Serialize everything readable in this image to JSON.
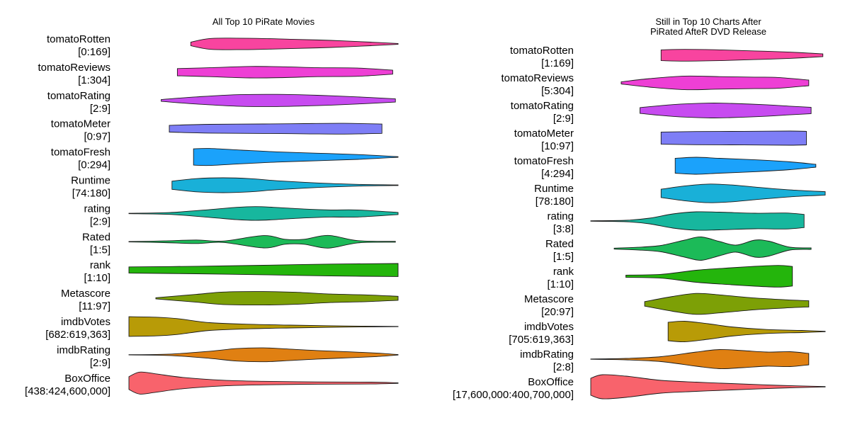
{
  "chart_data": [
    {
      "type": "violin",
      "title": [
        "All Top 10 PiRate Movies"
      ],
      "rows": [
        {
          "name": "tomatoRotten",
          "range": "[0:169]",
          "color": "#F8449F",
          "profile": [
            [
              0.23,
              2.6
            ],
            [
              0.3,
              7.6
            ],
            [
              0.4,
              8.1
            ],
            [
              0.5,
              7.6
            ],
            [
              0.6,
              6.6
            ],
            [
              0.75,
              5.0
            ],
            [
              0.9,
              2.5
            ],
            [
              1.0,
              0.6
            ]
          ]
        },
        {
          "name": "tomatoReviews",
          "range": "[1:304]",
          "color": "#EE3FD5",
          "profile": [
            [
              0.18,
              5.1
            ],
            [
              0.3,
              6.3
            ],
            [
              0.45,
              8.1
            ],
            [
              0.58,
              7.6
            ],
            [
              0.7,
              6.3
            ],
            [
              0.85,
              5.8
            ],
            [
              0.98,
              2.8
            ]
          ]
        },
        {
          "name": "tomatoRating",
          "range": "[2:9]",
          "color": "#C74BF0",
          "profile": [
            [
              0.12,
              1.3
            ],
            [
              0.25,
              5.0
            ],
            [
              0.4,
              8.1
            ],
            [
              0.55,
              8.6
            ],
            [
              0.7,
              7.3
            ],
            [
              0.85,
              5.0
            ],
            [
              0.99,
              2.3
            ]
          ]
        },
        {
          "name": "tomatoMeter",
          "range": "[0:97]",
          "color": "#7E7EF6",
          "profile": [
            [
              0.15,
              4.8
            ],
            [
              0.3,
              6.2
            ],
            [
              0.5,
              6.7
            ],
            [
              0.65,
              7.2
            ],
            [
              0.8,
              7.6
            ],
            [
              0.94,
              6.6
            ]
          ]
        },
        {
          "name": "tomatoFresh",
          "range": "[0:294]",
          "color": "#1BA2FB",
          "profile": [
            [
              0.24,
              11.5
            ],
            [
              0.3,
              12.0
            ],
            [
              0.42,
              9.6
            ],
            [
              0.55,
              7.2
            ],
            [
              0.7,
              5.3
            ],
            [
              0.85,
              3.4
            ],
            [
              1.0,
              0.4
            ]
          ]
        },
        {
          "name": "Runtime",
          "range": "[74:180]",
          "color": "#19B0D8",
          "profile": [
            [
              0.16,
              5.8
            ],
            [
              0.25,
              9.3
            ],
            [
              0.35,
              10.5
            ],
            [
              0.45,
              9.3
            ],
            [
              0.55,
              6.3
            ],
            [
              0.7,
              3.2
            ],
            [
              0.85,
              1.2
            ],
            [
              1.0,
              0.4
            ]
          ]
        },
        {
          "name": "rating",
          "range": "[2:9]",
          "color": "#17B79E",
          "profile": [
            [
              0.0,
              0.3
            ],
            [
              0.15,
              1.3
            ],
            [
              0.3,
              5.5
            ],
            [
              0.4,
              8.7
            ],
            [
              0.47,
              9.7
            ],
            [
              0.55,
              8.5
            ],
            [
              0.65,
              6.3
            ],
            [
              0.75,
              5.0
            ],
            [
              0.85,
              5.0
            ],
            [
              1.0,
              1.5
            ]
          ]
        },
        {
          "name": "Rated",
          "range": "[1:5]",
          "color": "#1CBA58",
          "profile": [
            [
              0.0,
              0.3
            ],
            [
              0.13,
              1.2
            ],
            [
              0.25,
              2.5
            ],
            [
              0.35,
              1.0
            ],
            [
              0.5,
              8.7
            ],
            [
              0.58,
              3.5
            ],
            [
              0.65,
              3.5
            ],
            [
              0.74,
              9.0
            ],
            [
              0.85,
              1.6
            ],
            [
              0.99,
              0.6
            ]
          ]
        },
        {
          "name": "rank",
          "range": "[1:10]",
          "color": "#24B50C",
          "profile": [
            [
              0.0,
              4.4
            ],
            [
              0.25,
              5.3
            ],
            [
              0.5,
              6.7
            ],
            [
              0.75,
              8.4
            ],
            [
              1.0,
              9.2
            ]
          ]
        },
        {
          "name": "Metascore",
          "range": "[11:97]",
          "color": "#7DA006",
          "profile": [
            [
              0.1,
              0.8
            ],
            [
              0.25,
              5.5
            ],
            [
              0.35,
              8.8
            ],
            [
              0.5,
              9.5
            ],
            [
              0.62,
              8.5
            ],
            [
              0.75,
              6.0
            ],
            [
              0.88,
              4.8
            ],
            [
              1.0,
              2.8
            ]
          ]
        },
        {
          "name": "imdbVotes",
          "range": "[682:619,363]",
          "color": "#B89B07",
          "profile": [
            [
              0.0,
              13.9
            ],
            [
              0.1,
              13.2
            ],
            [
              0.18,
              11.2
            ],
            [
              0.3,
              5.5
            ],
            [
              0.45,
              3.2
            ],
            [
              0.6,
              2.0
            ],
            [
              0.8,
              0.8
            ],
            [
              1.0,
              0.2
            ]
          ]
        },
        {
          "name": "imdbRating",
          "range": "[2:9]",
          "color": "#E08012",
          "profile": [
            [
              0.0,
              0.2
            ],
            [
              0.15,
              1.0
            ],
            [
              0.3,
              5.0
            ],
            [
              0.4,
              8.8
            ],
            [
              0.5,
              9.8
            ],
            [
              0.6,
              8.0
            ],
            [
              0.7,
              6.0
            ],
            [
              0.82,
              4.2
            ],
            [
              0.92,
              2.5
            ],
            [
              1.0,
              0.3
            ]
          ]
        },
        {
          "name": "BoxOffice",
          "range": "[438:424,600,000]",
          "color": "#F8636C",
          "profile": [
            [
              0.0,
              9.0
            ],
            [
              0.04,
              15.5
            ],
            [
              0.1,
              13.0
            ],
            [
              0.2,
              8.0
            ],
            [
              0.35,
              4.0
            ],
            [
              0.5,
              2.5
            ],
            [
              0.7,
              1.6
            ],
            [
              0.9,
              1.3
            ],
            [
              1.0,
              0.4
            ]
          ]
        }
      ]
    },
    {
      "type": "violin",
      "title": [
        "Still in Top 10 Charts After",
        "PiRated AfteR DVD Release"
      ],
      "rows": [
        {
          "name": "tomatoRotten",
          "range": "[1:169]",
          "color": "#F8449F",
          "profile": [
            [
              0.3,
              7.6
            ],
            [
              0.4,
              8.3
            ],
            [
              0.55,
              7.6
            ],
            [
              0.7,
              6.1
            ],
            [
              0.85,
              4.4
            ],
            [
              0.99,
              2.0
            ]
          ]
        },
        {
          "name": "tomatoReviews",
          "range": "[5:304]",
          "color": "#EE3FD5",
          "profile": [
            [
              0.13,
              1.5
            ],
            [
              0.25,
              6.0
            ],
            [
              0.4,
              9.6
            ],
            [
              0.55,
              8.8
            ],
            [
              0.7,
              8.1
            ],
            [
              0.8,
              7.6
            ],
            [
              0.93,
              4.0
            ]
          ]
        },
        {
          "name": "tomatoRating",
          "range": "[2:9]",
          "color": "#C74BF0",
          "profile": [
            [
              0.21,
              4.1
            ],
            [
              0.35,
              8.3
            ],
            [
              0.5,
              10.4
            ],
            [
              0.6,
              10.0
            ],
            [
              0.75,
              8.1
            ],
            [
              0.85,
              6.1
            ],
            [
              0.94,
              4.5
            ]
          ]
        },
        {
          "name": "tomatoMeter",
          "range": "[10:97]",
          "color": "#7E7EF6",
          "profile": [
            [
              0.3,
              8.6
            ],
            [
              0.45,
              9.3
            ],
            [
              0.6,
              9.5
            ],
            [
              0.75,
              9.8
            ],
            [
              0.85,
              10.0
            ],
            [
              0.92,
              9.6
            ]
          ]
        },
        {
          "name": "tomatoFresh",
          "range": "[4:294]",
          "color": "#1BA2FB",
          "profile": [
            [
              0.36,
              10.5
            ],
            [
              0.45,
              12.0
            ],
            [
              0.55,
              10.5
            ],
            [
              0.7,
              8.4
            ],
            [
              0.85,
              5.5
            ],
            [
              0.96,
              2.0
            ]
          ]
        },
        {
          "name": "Runtime",
          "range": "[78:180]",
          "color": "#19B0D8",
          "profile": [
            [
              0.3,
              5.9
            ],
            [
              0.4,
              10.4
            ],
            [
              0.5,
              13.1
            ],
            [
              0.6,
              11.9
            ],
            [
              0.7,
              8.9
            ],
            [
              0.85,
              4.9
            ],
            [
              1.0,
              2.4
            ]
          ]
        },
        {
          "name": "rating",
          "range": "[3:8]",
          "color": "#17B79E",
          "profile": [
            [
              0.0,
              0.3
            ],
            [
              0.15,
              1.0
            ],
            [
              0.25,
              4.0
            ],
            [
              0.35,
              10.0
            ],
            [
              0.45,
              13.0
            ],
            [
              0.55,
              12.5
            ],
            [
              0.7,
              11.0
            ],
            [
              0.83,
              11.3
            ],
            [
              0.91,
              9.3
            ]
          ]
        },
        {
          "name": "Rated",
          "range": "[1:5]",
          "color": "#1CBA58",
          "profile": [
            [
              0.1,
              0.7
            ],
            [
              0.2,
              1.9
            ],
            [
              0.3,
              4.5
            ],
            [
              0.4,
              12.0
            ],
            [
              0.47,
              16.5
            ],
            [
              0.55,
              10.0
            ],
            [
              0.62,
              5.0
            ],
            [
              0.7,
              12.0
            ],
            [
              0.76,
              10.5
            ],
            [
              0.85,
              2.0
            ],
            [
              0.94,
              1.1
            ]
          ]
        },
        {
          "name": "rank",
          "range": "[1:10]",
          "color": "#24B50C",
          "profile": [
            [
              0.15,
              1.6
            ],
            [
              0.3,
              2.7
            ],
            [
              0.45,
              8.5
            ],
            [
              0.6,
              12.0
            ],
            [
              0.7,
              14.0
            ],
            [
              0.8,
              15.3
            ],
            [
              0.86,
              13.8
            ]
          ]
        },
        {
          "name": "Metascore",
          "range": "[20:97]",
          "color": "#7DA006",
          "profile": [
            [
              0.23,
              3.2
            ],
            [
              0.35,
              10.5
            ],
            [
              0.45,
              14.8
            ],
            [
              0.55,
              12.7
            ],
            [
              0.7,
              8.3
            ],
            [
              0.83,
              5.8
            ],
            [
              0.93,
              4.4
            ]
          ]
        },
        {
          "name": "imdbVotes",
          "range": "[705:619,363]",
          "color": "#B89B07",
          "profile": [
            [
              0.33,
              13.0
            ],
            [
              0.4,
              14.5
            ],
            [
              0.5,
              11.0
            ],
            [
              0.6,
              6.5
            ],
            [
              0.75,
              2.8
            ],
            [
              0.9,
              1.5
            ],
            [
              1.0,
              0.3
            ]
          ]
        },
        {
          "name": "imdbRating",
          "range": "[2:8]",
          "color": "#E08012",
          "profile": [
            [
              0.0,
              0.2
            ],
            [
              0.15,
              1.0
            ],
            [
              0.3,
              3.5
            ],
            [
              0.45,
              10.0
            ],
            [
              0.55,
              13.5
            ],
            [
              0.65,
              12.0
            ],
            [
              0.75,
              10.0
            ],
            [
              0.85,
              10.5
            ],
            [
              0.93,
              8.0
            ]
          ]
        },
        {
          "name": "BoxOffice",
          "range": "[17,600,000:400,700,000]",
          "color": "#F8636C",
          "profile": [
            [
              0.0,
              12.0
            ],
            [
              0.05,
              17.0
            ],
            [
              0.15,
              15.0
            ],
            [
              0.3,
              9.0
            ],
            [
              0.45,
              6.5
            ],
            [
              0.6,
              4.5
            ],
            [
              0.8,
              2.0
            ],
            [
              1.0,
              0.3
            ]
          ]
        }
      ]
    }
  ]
}
